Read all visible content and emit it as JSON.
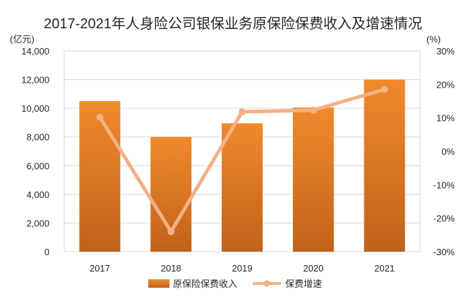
{
  "chart_data": {
    "type": "bar+line",
    "title": "2017-2021年人身险公司银保业务原保险保费收入及增速情况",
    "categories": [
      "2017",
      "2018",
      "2019",
      "2020",
      "2021"
    ],
    "series": [
      {
        "name": "原保险保费收入",
        "type": "bar",
        "axis": "left",
        "values": [
          10500,
          8000,
          8950,
          10050,
          12000
        ],
        "color": "#e07b24"
      },
      {
        "name": "保费增速",
        "type": "line",
        "axis": "right",
        "values": [
          10.2,
          -24.0,
          11.8,
          12.3,
          18.5
        ],
        "color": "#f4b183"
      }
    ],
    "left_axis": {
      "unit": "(亿元)",
      "ylim": [
        0,
        14000
      ],
      "ticks": [
        0,
        2000,
        4000,
        6000,
        8000,
        10000,
        12000,
        14000
      ],
      "tick_labels": [
        "0",
        "2,000",
        "4,000",
        "6,000",
        "8,000",
        "10,000",
        "12,000",
        "14,000"
      ]
    },
    "right_axis": {
      "unit": "(%)",
      "ylim": [
        -30,
        30
      ],
      "ticks": [
        -30,
        -20,
        -10,
        0,
        10,
        20,
        30
      ],
      "tick_labels": [
        "-30%",
        "-20%",
        "-10%",
        "0%",
        "10%",
        "20%",
        "30%"
      ]
    },
    "grid": true,
    "legend_position": "bottom"
  }
}
